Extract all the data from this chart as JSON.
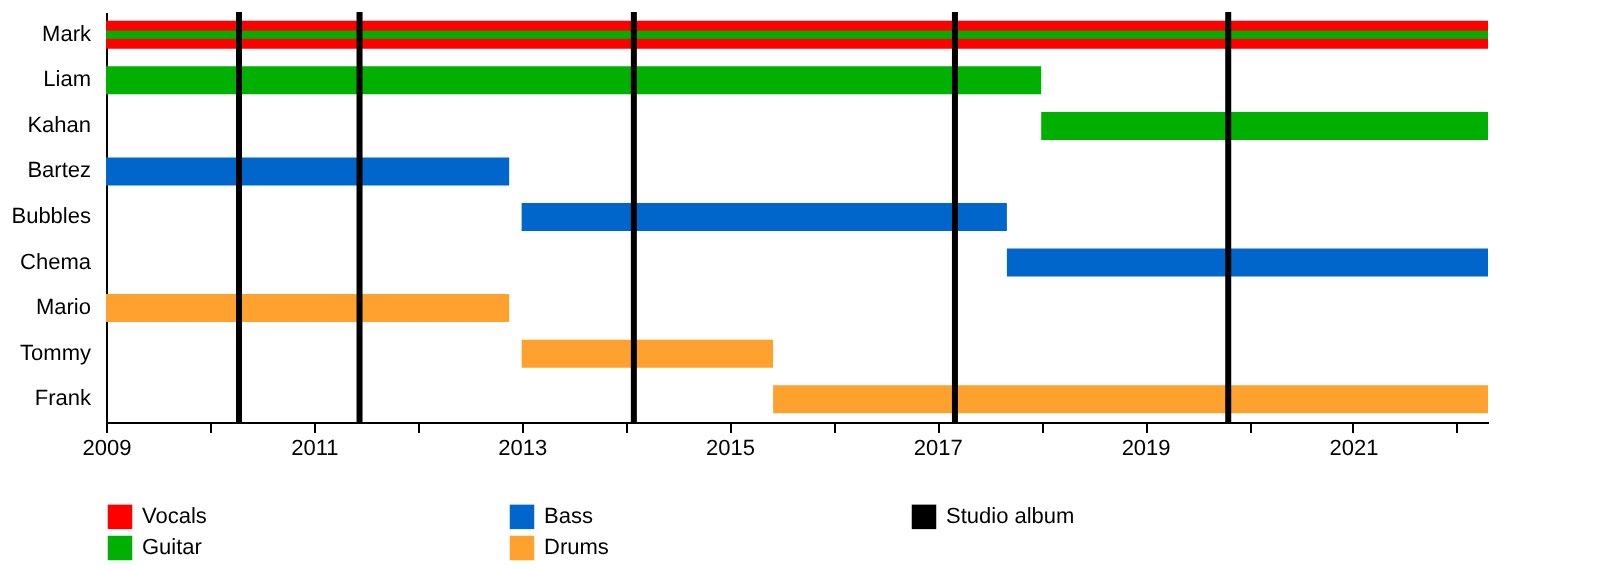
{
  "chart_data": {
    "type": "bar",
    "orientation": "horizontal",
    "stacked": false,
    "categories": [
      "Mark",
      "Liam",
      "Kahan",
      "Bartez",
      "Bubbles",
      "Chema",
      "Mario",
      "Tommy",
      "Frank"
    ],
    "series": [
      {
        "name": "Vocals",
        "color": "#ff0000",
        "base": [
          2009,
          null,
          null,
          null,
          null,
          null,
          null,
          null,
          null
        ],
        "values": [
          13.3,
          null,
          null,
          null,
          null,
          null,
          null,
          null,
          null
        ]
      },
      {
        "name": "Guitar",
        "color": "#00b000",
        "base": [
          2009,
          2009,
          2018.0,
          null,
          null,
          null,
          null,
          null,
          null
        ],
        "values": [
          13.3,
          9.0,
          4.3,
          null,
          null,
          null,
          null,
          null,
          null
        ]
      },
      {
        "name": "Bass",
        "color": "#0066cc",
        "base": [
          null,
          null,
          null,
          2009,
          2013.0,
          2017.67,
          null,
          null,
          null
        ],
        "values": [
          null,
          null,
          null,
          3.88,
          4.67,
          4.63,
          null,
          null,
          null
        ]
      },
      {
        "name": "Drums",
        "color": "#ffa12f",
        "base": [
          null,
          null,
          null,
          null,
          null,
          null,
          2009,
          2013.0,
          2015.42
        ],
        "values": [
          null,
          null,
          null,
          null,
          null,
          null,
          3.88,
          2.42,
          6.88
        ]
      }
    ],
    "ref_lines": [
      {
        "axis": "x",
        "value": 2010.28,
        "label": "Studio album",
        "color": "#000000"
      },
      {
        "axis": "x",
        "value": 2011.44,
        "color": "#000000"
      },
      {
        "axis": "x",
        "value": 2014.08,
        "color": "#000000"
      },
      {
        "axis": "x",
        "value": 2017.17,
        "color": "#000000"
      },
      {
        "axis": "x",
        "value": 2019.8,
        "color": "#000000"
      }
    ],
    "xlim": [
      2009,
      2022.3
    ],
    "xticks": [
      2009,
      {
        "value": 2010,
        "label": null
      },
      2011,
      {
        "value": 2012,
        "label": null
      },
      2013,
      {
        "value": 2014,
        "label": null
      },
      2015,
      {
        "value": 2016,
        "label": null
      },
      2017,
      {
        "value": 2018,
        "label": null
      },
      2019,
      {
        "value": 2020,
        "label": null
      },
      2021,
      {
        "value": 2022,
        "label": null
      }
    ],
    "grid": false,
    "legend": "bottom"
  }
}
